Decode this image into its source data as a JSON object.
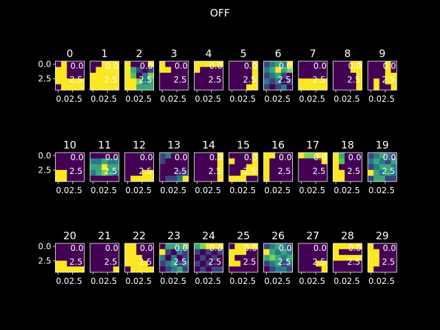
{
  "figure": {
    "title": "OFF",
    "background": "#000000",
    "colormap": [
      "#440154",
      "#3b528b",
      "#21918c",
      "#5ec962",
      "#fde725"
    ]
  },
  "chart_data": {
    "type": "heatmap",
    "title": "OFF",
    "grid": false,
    "panel_titles": [
      "0",
      "1",
      "2",
      "3",
      "4",
      "5",
      "6",
      "7",
      "8",
      "9",
      "10",
      "11",
      "12",
      "13",
      "14",
      "15",
      "16",
      "17",
      "18",
      "19",
      "20",
      "21",
      "22",
      "23",
      "24",
      "25",
      "26",
      "27",
      "28",
      "29"
    ],
    "y_tick_labels": [
      "0.0",
      "2.5"
    ],
    "x_tick_label": "0.02.5",
    "overlay_labels": [
      "0.0",
      "2.5"
    ],
    "xlim": [
      -0.5,
      4.5
    ],
    "ylim": [
      4.5,
      -0.5
    ],
    "panels": [
      [
        [
          0,
          1,
          0,
          0,
          0
        ],
        [
          1,
          1,
          0,
          0,
          0
        ],
        [
          1,
          1,
          0,
          0,
          0
        ],
        [
          1,
          1,
          1,
          1,
          1
        ],
        [
          0,
          1,
          1,
          1,
          1
        ]
      ],
      [
        [
          0,
          0,
          1,
          1,
          1
        ],
        [
          0,
          1,
          1,
          1,
          1
        ],
        [
          1,
          1,
          1,
          1,
          1
        ],
        [
          1,
          1,
          1,
          1,
          1
        ],
        [
          1,
          1,
          1,
          1,
          1
        ]
      ],
      [
        [
          1,
          0,
          0,
          0,
          1
        ],
        [
          1,
          0.6,
          0.2,
          0,
          0.2
        ],
        [
          1,
          0.7,
          0,
          0.4,
          0.8
        ],
        [
          1,
          1,
          0.8,
          0.4,
          0.6
        ],
        [
          1,
          1,
          0.6,
          0.6,
          0.6
        ]
      ],
      [
        [
          1,
          0,
          0,
          0,
          0
        ],
        [
          1,
          1,
          0,
          0,
          0
        ],
        [
          0,
          0,
          0,
          0,
          0
        ],
        [
          0,
          0,
          0,
          0,
          0
        ],
        [
          0,
          0,
          0,
          0,
          0
        ]
      ],
      [
        [
          1,
          1,
          1,
          1,
          1
        ],
        [
          1,
          0,
          0,
          0,
          0
        ],
        [
          0,
          0,
          0,
          0,
          0
        ],
        [
          0,
          0,
          0,
          0,
          0
        ],
        [
          0,
          0,
          0,
          0,
          0
        ]
      ],
      [
        [
          0,
          0,
          0,
          0,
          1
        ],
        [
          0,
          0,
          0,
          0,
          1
        ],
        [
          0,
          0,
          0,
          0,
          1
        ],
        [
          0,
          0,
          0,
          0,
          1
        ],
        [
          0,
          0,
          0,
          1,
          1
        ]
      ],
      [
        [
          0.2,
          0.4,
          0.6,
          0.4,
          1
        ],
        [
          0.4,
          0.6,
          1,
          0.6,
          0.8
        ],
        [
          0.2,
          0.4,
          0.6,
          0.2,
          0
        ],
        [
          0.4,
          0.2,
          0.4,
          0,
          0.2
        ],
        [
          0.2,
          0,
          0.2,
          0.4,
          0
        ]
      ],
      [
        [
          0,
          0,
          0,
          0,
          0
        ],
        [
          0,
          0,
          0,
          0,
          0
        ],
        [
          0,
          0,
          0,
          0,
          0
        ],
        [
          1,
          1,
          1,
          1,
          1
        ],
        [
          1,
          1,
          1,
          1,
          1
        ]
      ],
      [
        [
          0,
          0,
          0,
          1,
          1
        ],
        [
          0,
          0,
          0,
          1,
          1
        ],
        [
          0,
          0,
          0,
          0,
          1
        ],
        [
          0,
          0,
          0,
          0,
          1
        ],
        [
          0,
          0,
          0,
          0,
          1
        ]
      ],
      [
        [
          0,
          0,
          0,
          1,
          0
        ],
        [
          0,
          0,
          0,
          1,
          0
        ],
        [
          0,
          0,
          0,
          1,
          1
        ],
        [
          0,
          1,
          0,
          1,
          1
        ],
        [
          0,
          1,
          0,
          0,
          1
        ]
      ],
      [
        [
          0,
          0,
          0,
          0,
          0
        ],
        [
          0,
          0,
          0,
          0,
          0
        ],
        [
          0,
          0,
          0,
          0,
          0
        ],
        [
          1,
          1,
          0,
          0,
          0
        ],
        [
          1,
          1,
          0,
          0,
          0
        ]
      ],
      [
        [
          0,
          0,
          0,
          0,
          0
        ],
        [
          0.4,
          0.4,
          0.6,
          0.4,
          0.4
        ],
        [
          0.6,
          0.6,
          1,
          0.6,
          0.6
        ],
        [
          0.4,
          0.6,
          0.8,
          0.6,
          0.4
        ],
        [
          0,
          0,
          0,
          0,
          0
        ]
      ],
      [
        [
          0,
          0,
          0,
          0,
          0
        ],
        [
          0,
          0,
          0,
          0,
          0
        ],
        [
          0,
          0,
          0,
          0,
          0
        ],
        [
          0,
          0,
          0,
          1,
          1
        ],
        [
          0,
          1,
          1,
          1,
          1
        ]
      ],
      [
        [
          0.2,
          0.4,
          0,
          0,
          0
        ],
        [
          0.2,
          0,
          0,
          0,
          0
        ],
        [
          0,
          0,
          0,
          0,
          0
        ],
        [
          0,
          0,
          0,
          0.2,
          0.2
        ],
        [
          0,
          0.2,
          0.2,
          0.4,
          1
        ]
      ],
      [
        [
          0,
          0,
          0,
          0,
          1
        ],
        [
          0,
          0,
          0,
          0,
          1
        ],
        [
          0,
          0,
          0,
          0,
          1
        ],
        [
          0,
          0,
          0,
          0,
          1
        ],
        [
          0,
          0,
          0,
          0,
          1
        ]
      ],
      [
        [
          0,
          0,
          0,
          0,
          1
        ],
        [
          1,
          0,
          0,
          0,
          1
        ],
        [
          0,
          0,
          0,
          1,
          1
        ],
        [
          0,
          0,
          1,
          1,
          1
        ],
        [
          1,
          1,
          1,
          0,
          0
        ]
      ],
      [
        [
          1,
          1,
          0,
          0,
          0
        ],
        [
          1,
          0,
          0,
          0,
          0
        ],
        [
          1,
          0,
          0,
          0,
          0
        ],
        [
          1,
          0,
          0,
          0,
          0
        ],
        [
          1,
          0,
          0,
          0,
          0
        ]
      ],
      [
        [
          1,
          0.8,
          0.8,
          1,
          1
        ],
        [
          0,
          0,
          0,
          0,
          1
        ],
        [
          0,
          0,
          0,
          0,
          0
        ],
        [
          0,
          0,
          0,
          0,
          0
        ],
        [
          0,
          0,
          0,
          0,
          0
        ]
      ],
      [
        [
          1,
          0.6,
          0,
          0,
          0
        ],
        [
          1,
          0.7,
          0,
          0,
          0
        ],
        [
          1,
          0,
          0,
          0,
          0
        ],
        [
          1,
          1,
          0,
          0,
          0
        ],
        [
          1,
          1,
          0,
          0,
          0
        ]
      ],
      [
        [
          0.2,
          0.4,
          0.6,
          0.4,
          0.2
        ],
        [
          0.4,
          0.6,
          0.4,
          0.2,
          0.6
        ],
        [
          0.2,
          0.4,
          0.6,
          0.6,
          0.4
        ],
        [
          1,
          0.6,
          0.4,
          0.6,
          0.4
        ],
        [
          0.2,
          0.6,
          0.6,
          0.2,
          0.2
        ]
      ],
      [
        [
          0,
          0,
          0,
          0,
          0
        ],
        [
          0,
          0,
          0,
          0,
          0
        ],
        [
          0,
          0,
          0,
          0,
          0
        ],
        [
          1,
          1,
          0,
          0,
          0
        ],
        [
          1,
          1,
          1,
          1,
          1
        ]
      ],
      [
        [
          0,
          0,
          0,
          0,
          0
        ],
        [
          0,
          0,
          0,
          0,
          0
        ],
        [
          0,
          0,
          0,
          0,
          0
        ],
        [
          0,
          0,
          0,
          0,
          0
        ],
        [
          0,
          0,
          0,
          0,
          1
        ]
      ],
      [
        [
          1,
          1,
          0,
          0,
          0
        ],
        [
          1,
          1,
          0,
          0,
          0
        ],
        [
          1,
          1,
          1,
          0,
          0
        ],
        [
          1,
          1,
          1,
          1,
          0
        ],
        [
          0,
          1,
          1,
          1,
          1
        ]
      ],
      [
        [
          0,
          0.6,
          0.6,
          0.6,
          0.8
        ],
        [
          1,
          0.2,
          0,
          0.4,
          0.2
        ],
        [
          0.4,
          0,
          0.4,
          0,
          0.2
        ],
        [
          0.2,
          0.4,
          0.6,
          0.2,
          0.4
        ],
        [
          0,
          0.2,
          0.4,
          0.6,
          0.2
        ]
      ],
      [
        [
          0.6,
          0.8,
          1,
          1,
          1
        ],
        [
          0.2,
          0,
          0.2,
          0,
          0.2
        ],
        [
          0,
          0.2,
          0,
          0.2,
          0
        ],
        [
          0.2,
          0,
          0.2,
          0,
          0
        ],
        [
          0,
          0.2,
          0,
          0.2,
          0.2
        ]
      ],
      [
        [
          0,
          1,
          1,
          1,
          1
        ],
        [
          1,
          1,
          1,
          0,
          0
        ],
        [
          1,
          0,
          0,
          0,
          0
        ],
        [
          1,
          1,
          0,
          0,
          0
        ],
        [
          0,
          0,
          0,
          0,
          0
        ]
      ],
      [
        [
          0.2,
          0.4,
          0.6,
          0.4,
          0.2
        ],
        [
          1,
          0.6,
          0.4,
          0.6,
          0.4
        ],
        [
          0.6,
          0.8,
          0.6,
          0.4,
          0.6
        ],
        [
          0.2,
          0.4,
          0.6,
          0.2,
          0.4
        ],
        [
          0,
          0.2,
          0.4,
          0.4,
          0.2
        ]
      ],
      [
        [
          0,
          0,
          0,
          0,
          0
        ],
        [
          0,
          0,
          0,
          0,
          0
        ],
        [
          0,
          0,
          0,
          0,
          0
        ],
        [
          0,
          0,
          0,
          1,
          1
        ],
        [
          0,
          0,
          0,
          0,
          1
        ]
      ],
      [
        [
          1,
          1,
          1,
          1,
          1
        ],
        [
          1,
          0,
          0,
          0,
          0
        ],
        [
          1,
          1,
          1,
          1,
          1
        ],
        [
          0,
          0,
          0,
          0,
          0
        ],
        [
          0,
          0,
          0,
          0,
          0
        ]
      ],
      [
        [
          1,
          0,
          0,
          0,
          0
        ],
        [
          1,
          1,
          0,
          0,
          0
        ],
        [
          1,
          1,
          0,
          0,
          0
        ],
        [
          1,
          1,
          0,
          0,
          0
        ],
        [
          1,
          0,
          0,
          0,
          0
        ]
      ]
    ]
  }
}
